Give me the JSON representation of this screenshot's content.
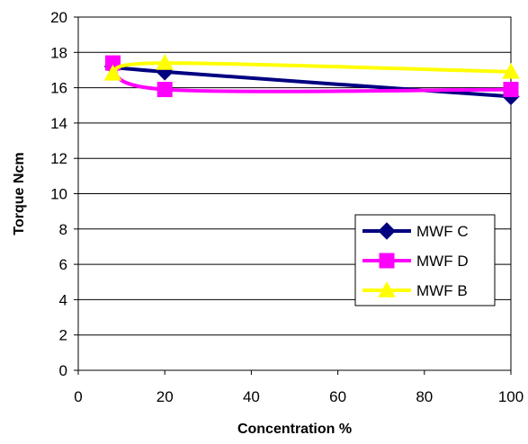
{
  "chart_data": {
    "type": "line",
    "xlabel": "Concentration %",
    "ylabel": "Torque Ncm",
    "xlim": [
      0,
      100
    ],
    "ylim": [
      0,
      20
    ],
    "xticks": [
      0,
      20,
      40,
      60,
      80,
      100
    ],
    "yticks": [
      0,
      2,
      4,
      6,
      8,
      10,
      12,
      14,
      16,
      18,
      20
    ],
    "x": [
      8,
      20,
      100
    ],
    "grid": "horizontal",
    "legend_position": "right",
    "series": [
      {
        "name": "MWF C",
        "values": [
          17.2,
          16.9,
          15.5
        ],
        "color": "#000080",
        "marker": "diamond"
      },
      {
        "name": "MWF D",
        "values": [
          17.4,
          15.9,
          15.9
        ],
        "color": "#FF00FF",
        "marker": "square"
      },
      {
        "name": "MWF B",
        "values": [
          16.8,
          17.4,
          16.9
        ],
        "color": "#FFFF00",
        "marker": "triangle"
      }
    ]
  }
}
